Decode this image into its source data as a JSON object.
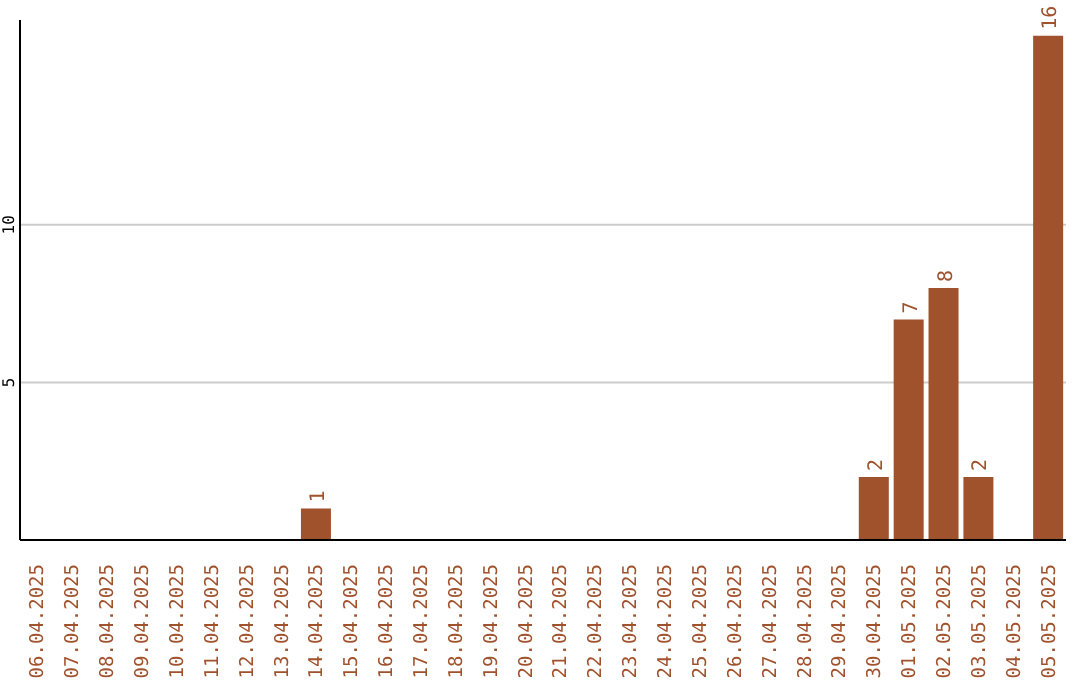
{
  "chart_data": {
    "type": "bar",
    "categories": [
      "06.04.2025",
      "07.04.2025",
      "08.04.2025",
      "09.04.2025",
      "10.04.2025",
      "11.04.2025",
      "12.04.2025",
      "13.04.2025",
      "14.04.2025",
      "15.04.2025",
      "16.04.2025",
      "17.04.2025",
      "18.04.2025",
      "19.04.2025",
      "20.04.2025",
      "21.04.2025",
      "22.04.2025",
      "23.04.2025",
      "24.04.2025",
      "25.04.2025",
      "26.04.2025",
      "27.04.2025",
      "28.04.2025",
      "29.04.2025",
      "30.04.2025",
      "01.05.2025",
      "02.05.2025",
      "03.05.2025",
      "04.05.2025",
      "05.05.2025"
    ],
    "values": [
      0,
      0,
      0,
      0,
      0,
      0,
      0,
      0,
      1,
      0,
      0,
      0,
      0,
      0,
      0,
      0,
      0,
      0,
      0,
      0,
      0,
      0,
      0,
      0,
      2,
      7,
      8,
      2,
      0,
      16
    ],
    "value_labels": [
      null,
      null,
      null,
      null,
      null,
      null,
      null,
      null,
      "1",
      null,
      null,
      null,
      null,
      null,
      null,
      null,
      null,
      null,
      null,
      null,
      null,
      null,
      null,
      null,
      "2",
      "7",
      "8",
      "2",
      null,
      "16"
    ],
    "color": "#a0522d",
    "ylim": [
      0,
      16.5
    ],
    "yticks": [
      5,
      10
    ],
    "grid": "y"
  }
}
